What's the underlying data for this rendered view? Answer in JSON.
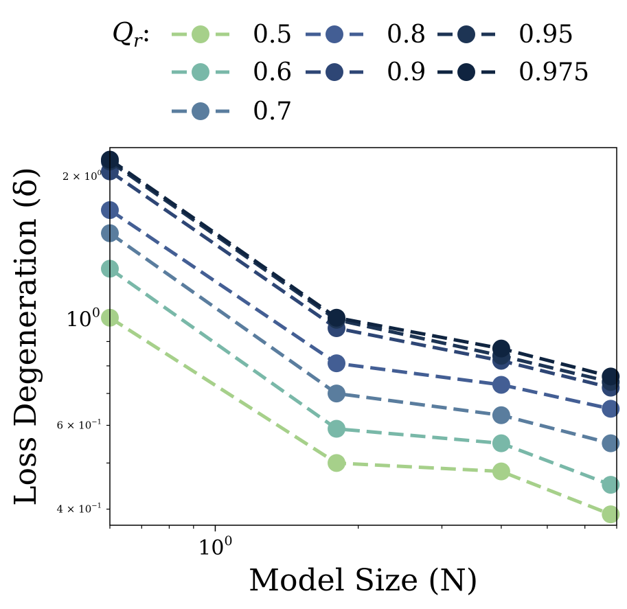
{
  "chart_data": {
    "type": "line",
    "title": "",
    "xlabel": "Model Size (N)",
    "ylabel": "Loss Degeneration (δ)",
    "xscale": "log",
    "yscale": "log",
    "xlim": [
      0.6,
      7.0
    ],
    "ylim": [
      0.37,
      2.3
    ],
    "x": [
      0.6,
      1.8,
      4.0,
      6.8
    ],
    "x_ticks": [
      {
        "value": 1,
        "label": "10",
        "sup": "0"
      }
    ],
    "y_ticks": [
      {
        "value": 2,
        "label": "2 × 10",
        "sup": "0",
        "minor": true
      },
      {
        "value": 1,
        "label": "10",
        "sup": "0",
        "minor": false
      },
      {
        "value": 0.6,
        "label": "6 × 10",
        "sup": "−1",
        "minor": true
      },
      {
        "value": 0.4,
        "label": "4 × 10",
        "sup": "−1",
        "minor": true
      }
    ],
    "legend": {
      "title": "Q",
      "title_sub": "r",
      "position": "top",
      "columns": 3
    },
    "series": [
      {
        "name": "0.5",
        "color": "#a6d08a",
        "values": [
          1.01,
          0.5,
          0.48,
          0.39
        ]
      },
      {
        "name": "0.6",
        "color": "#79b8a8",
        "values": [
          1.28,
          0.59,
          0.55,
          0.45
        ]
      },
      {
        "name": "0.7",
        "color": "#5a7d9e",
        "values": [
          1.52,
          0.7,
          0.63,
          0.55
        ]
      },
      {
        "name": "0.8",
        "color": "#435e94",
        "values": [
          1.7,
          0.81,
          0.73,
          0.65
        ]
      },
      {
        "name": "0.9",
        "color": "#2e4675",
        "values": [
          2.05,
          0.96,
          0.82,
          0.72
        ]
      },
      {
        "name": "0.95",
        "color": "#1d3454",
        "values": [
          2.15,
          1.0,
          0.84,
          0.74
        ]
      },
      {
        "name": "0.975",
        "color": "#0f2440",
        "values": [
          2.17,
          1.01,
          0.87,
          0.76
        ]
      }
    ]
  }
}
